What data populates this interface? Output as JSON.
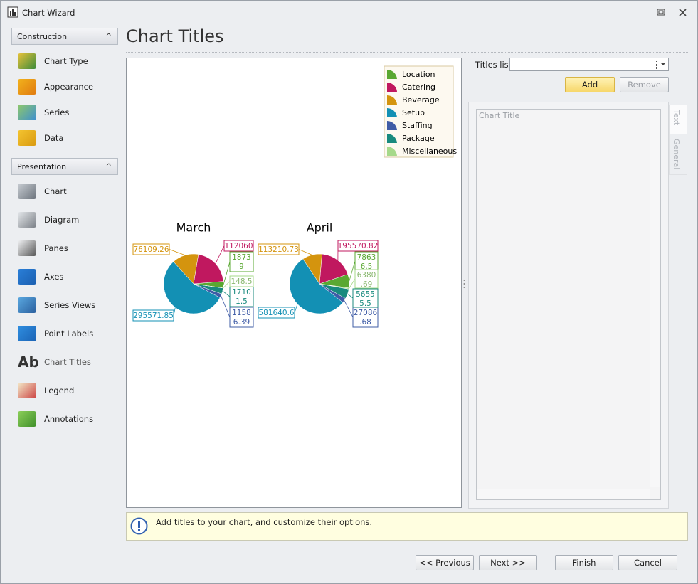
{
  "window": {
    "title": "Chart Wizard"
  },
  "sidebar": {
    "groups": [
      {
        "title": "Construction",
        "items": [
          "Chart Type",
          "Appearance",
          "Series",
          "Data"
        ]
      },
      {
        "title": "Presentation",
        "items": [
          "Chart",
          "Diagram",
          "Panes",
          "Axes",
          "Series Views",
          "Point Labels",
          "Chart Titles",
          "Legend",
          "Annotations"
        ]
      }
    ]
  },
  "header": {
    "title": "Chart Titles"
  },
  "chart_data": {
    "type": "pie",
    "categories": [
      "Location",
      "Catering",
      "Beverage",
      "Setup",
      "Staffing",
      "Package",
      "Miscellaneous"
    ],
    "colors": [
      "#5aa832",
      "#c0185f",
      "#d4940e",
      "#1390b4",
      "#3f5ca6",
      "#188a7e",
      "#a6d98a"
    ],
    "series": [
      {
        "name": "March",
        "values": [
          18739,
          112060,
          76109.26,
          295571.85,
          11586.39,
          17101.5,
          148.5
        ]
      },
      {
        "name": "April",
        "values": [
          78636.5,
          195570.82,
          113210.73,
          581640.6,
          27086.68,
          56555.5,
          6380.69
        ]
      }
    ]
  },
  "right_panel": {
    "titles_list_label": "Titles list:",
    "add": "Add",
    "remove": "Remove",
    "editor_text": "Chart Title",
    "tabs": [
      "Text",
      "General"
    ]
  },
  "hint": "Add titles to your chart, and customize their options.",
  "buttons": [
    "<< Previous",
    "Next >>",
    "Finish",
    "Cancel"
  ]
}
